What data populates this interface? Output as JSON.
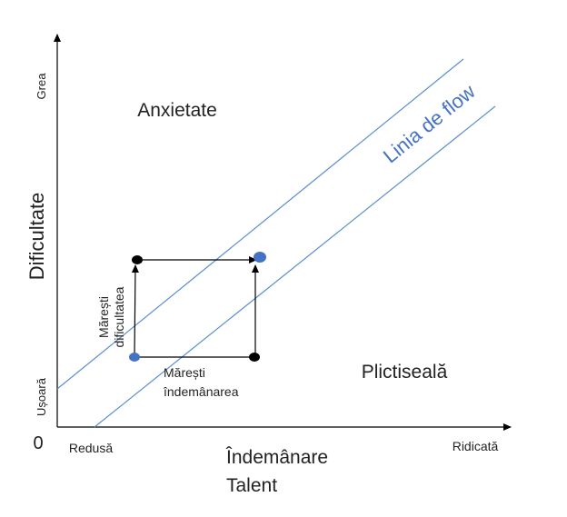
{
  "axes": {
    "y_label": "Dificultate",
    "y_top": "Grea",
    "y_bottom": "Ușoară",
    "origin": "0",
    "x_left": "Redusă",
    "x_label_lines": [
      "Îndemânare",
      "Talent"
    ],
    "x_right": "Ridicată"
  },
  "regions": {
    "top": "Anxietate",
    "bottom": "Plictiseală"
  },
  "flow_line": "Linia de flow",
  "steps": {
    "difficulty_lines": [
      "Mărești",
      "dificultatea"
    ],
    "skill_lines": [
      "Mărești",
      "îndemânarea"
    ]
  }
}
